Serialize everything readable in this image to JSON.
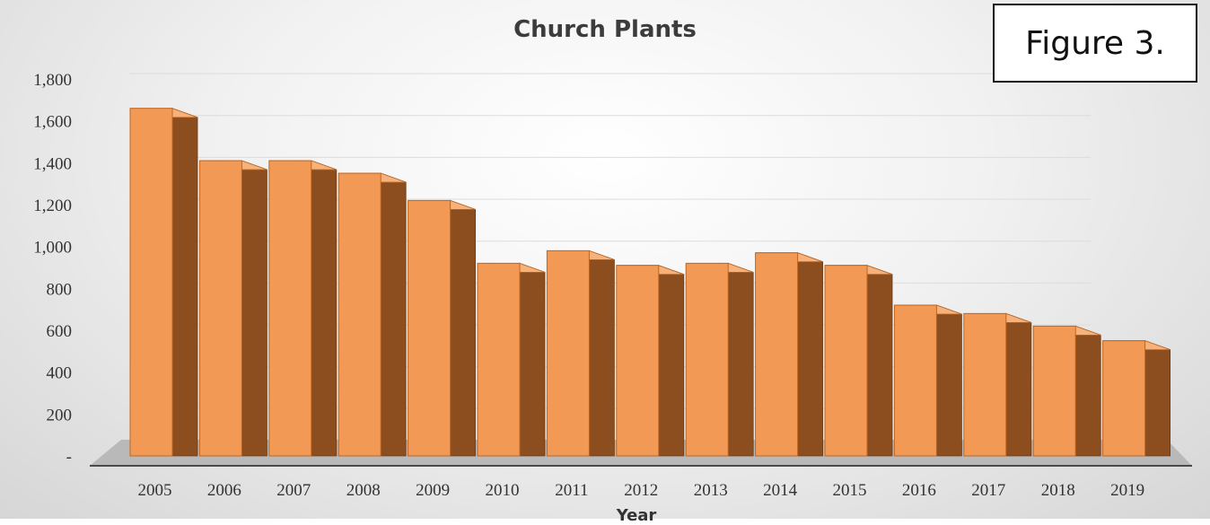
{
  "figure_label": "Figure 3.",
  "chart_data": {
    "type": "bar",
    "title": "Church Plants",
    "xlabel": "Year",
    "ylabel": "",
    "categories": [
      "2005",
      "2006",
      "2007",
      "2008",
      "2009",
      "2010",
      "2011",
      "2012",
      "2013",
      "2014",
      "2015",
      "2016",
      "2017",
      "2018",
      "2019"
    ],
    "values": [
      1660,
      1410,
      1410,
      1350,
      1220,
      920,
      980,
      910,
      920,
      970,
      910,
      720,
      680,
      620,
      550
    ],
    "ylim": [
      0,
      1800
    ],
    "yticks": [
      0,
      200,
      400,
      600,
      800,
      1000,
      1200,
      1400,
      1600,
      1800
    ],
    "ytick_labels": [
      "-",
      "200",
      "400",
      "600",
      "800",
      "1,000",
      "1,200",
      "1,400",
      "1,600",
      "1,800"
    ],
    "grid": true,
    "legend": "none",
    "style": "3d-column",
    "colors": {
      "bar_front": "#f29a55",
      "bar_side": "#8c4e1f",
      "bar_top": "#f6b27a",
      "floor": "#b9b9b9"
    }
  }
}
